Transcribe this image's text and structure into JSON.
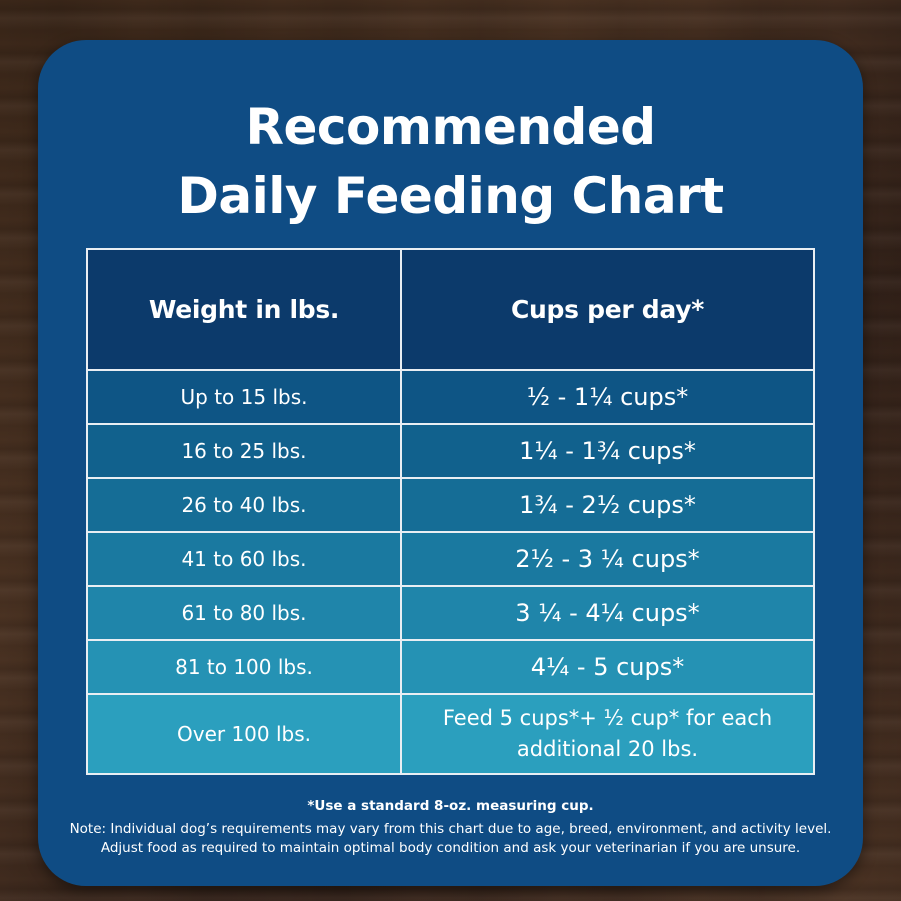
{
  "title": {
    "line1": "Recommended",
    "line2": "Daily Feeding Chart"
  },
  "table": {
    "headers": [
      "Weight in lbs.",
      "Cups per day*"
    ],
    "rows": [
      {
        "weight": "Up to 15 lbs.",
        "cups": "½ - 1¼ cups*"
      },
      {
        "weight": "16 to 25 lbs.",
        "cups": "1¼ - 1¾  cups*"
      },
      {
        "weight": "26 to 40 lbs.",
        "cups": "1¾ - 2½ cups*"
      },
      {
        "weight": "41 to 60 lbs.",
        "cups": "2½ - 3 ¼ cups*"
      },
      {
        "weight": "61 to 80 lbs.",
        "cups": "3 ¼ - 4¼ cups*"
      },
      {
        "weight": "81 to 100 lbs.",
        "cups": "4¼ - 5 cups*"
      },
      {
        "weight": "Over 100 lbs.",
        "cups": "Feed 5 cups*+ ½ cup* for each additional 20 lbs."
      }
    ]
  },
  "footnotes": {
    "measuring": "*Use a standard 8-oz. measuring cup.",
    "note_line1": "Note: Individual dog’s requirements may vary from this chart due to age, breed, environment, and activity level.",
    "note_line2": "Adjust food as required to maintain optimal body condition and ask your veterinarian if you are unsure."
  },
  "colors": {
    "card_background": "#0f4c84",
    "header_row": "#0c3a6b",
    "row_gradient": [
      "#0e5585",
      "#11618d",
      "#156d96",
      "#1a79a0",
      "#1f85aa",
      "#2592b4",
      "#2b9fbe"
    ],
    "grid_line": "#e9eef3",
    "text": "#ffffff",
    "wood_background": "#3f2a1d"
  }
}
